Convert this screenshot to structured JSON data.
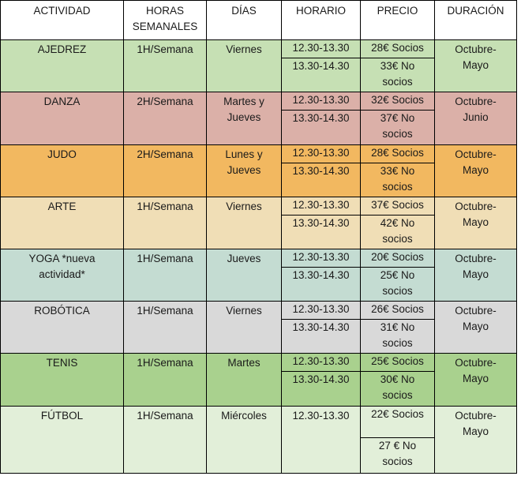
{
  "headers": {
    "actividad": "ACTIVIDAD",
    "horas": "HORAS\nSEMANALES",
    "dias": "DÍAS",
    "horario": "HORARIO",
    "precio": "PRECIO",
    "duracion": "DURACIÓN"
  },
  "rows": [
    {
      "actividad": "AJEDREZ",
      "horas": "1H/Semana",
      "dias": "Viernes",
      "horario1": "12.30-13.30",
      "horario2": "13.30-14.30",
      "precio1": "28€ Socios",
      "precio2": "33€ No\nsocios",
      "duracion": "Octubre-\nMayo"
    },
    {
      "actividad": "DANZA",
      "horas": "2H/Semana",
      "dias": "Martes y\nJueves",
      "horario1": "12.30-13.30",
      "horario2": "13.30-14.30",
      "precio1": "32€ Socios",
      "precio2": "37€ No\nsocios",
      "duracion": "Octubre-\nJunio"
    },
    {
      "actividad": "JUDO",
      "horas": "2H/Semana",
      "dias": "Lunes y\nJueves",
      "horario1": "12.30-13.30",
      "horario2": "13.30-14.30",
      "precio1": "28€ Socios",
      "precio2": "33€ No\nsocios",
      "duracion": "Octubre-\nMayo"
    },
    {
      "actividad": "ARTE",
      "horas": "1H/Semana",
      "dias": "Viernes",
      "horario1": "12.30-13.30",
      "horario2": "13.30-14.30",
      "precio1": "37€ Socios",
      "precio2": "42€ No\nsocios",
      "duracion": "Octubre-\nMayo"
    },
    {
      "actividad": "YOGA *nueva\nactividad*",
      "horas": "1H/Semana",
      "dias": "Jueves",
      "horario1": "12.30-13.30",
      "horario2": "13.30-14.30",
      "precio1": "20€ Socios",
      "precio2": "25€ No\nsocios",
      "duracion": "Octubre-\nMayo"
    },
    {
      "actividad": "ROBÓTICA",
      "horas": "1H/Semana",
      "dias": "Viernes",
      "horario1": "12.30-13.30",
      "horario2": "13.30-14.30",
      "precio1": "26€ Socios",
      "precio2": "31€ No\nsocios",
      "duracion": "Octubre-\nMayo"
    },
    {
      "actividad": "TENIS",
      "horas": "1H/Semana",
      "dias": "Martes",
      "horario1": "12.30-13.30",
      "horario2": "13.30-14.30",
      "precio1": "25€ Socios",
      "precio2": "30€ No\nsocios",
      "duracion": "Octubre-\nMayo"
    },
    {
      "actividad": "FÚTBOL",
      "horas": "1H/Semana",
      "dias": "Miércoles",
      "horario1": "12.30-13.30",
      "precio1": "22€ Socios",
      "precio2": "27 € No\nsocios",
      "duracion": "Octubre-\nMayo"
    }
  ]
}
